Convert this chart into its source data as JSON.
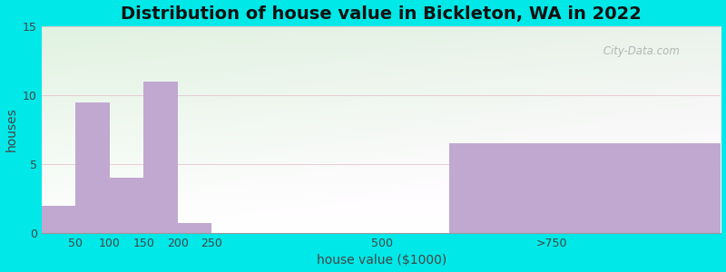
{
  "title": "Distribution of house value in Bickleton, WA in 2022",
  "xlabel": "house value ($1000)",
  "ylabel": "houses",
  "bar_lefts": [
    0,
    50,
    100,
    150,
    200,
    600
  ],
  "bar_rights": [
    50,
    100,
    150,
    200,
    250,
    999
  ],
  "bar_heights": [
    2,
    9.5,
    4,
    11,
    0.7,
    6.5
  ],
  "bar_color": "#c0a8d0",
  "background_outer": "#00e8e8",
  "ylim": [
    0,
    15
  ],
  "xlim": [
    0,
    999
  ],
  "yticks": [
    0,
    5,
    10,
    15
  ],
  "xtick_positions": [
    50,
    100,
    150,
    200,
    250,
    500,
    750
  ],
  "xtick_labels": [
    "50",
    "100",
    "150",
    "200",
    "250",
    "500",
    ">750"
  ],
  "title_fontsize": 14,
  "axis_label_fontsize": 10,
  "watermark": " City-Data.com"
}
